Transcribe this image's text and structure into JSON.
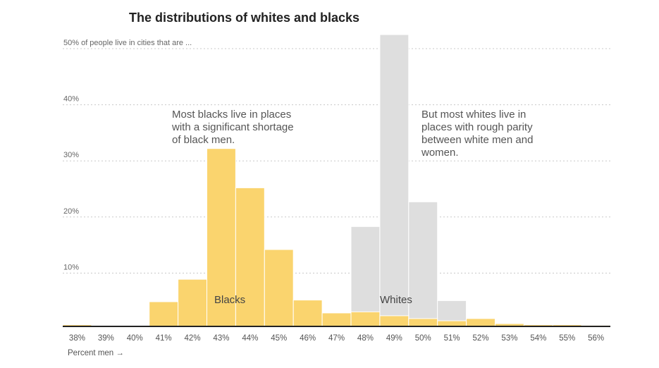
{
  "title": "The distributions of whites and blacks",
  "chart_data": {
    "type": "bar",
    "title": "The distributions of whites and blacks",
    "ylabel_top": "50% of people live in cities that are ...",
    "xlabel": "Percent men →",
    "categories": [
      "38%",
      "39%",
      "40%",
      "41%",
      "42%",
      "43%",
      "44%",
      "45%",
      "46%",
      "47%",
      "48%",
      "49%",
      "50%",
      "51%",
      "52%",
      "53%",
      "54%",
      "55%",
      "56%"
    ],
    "y_ticks": [
      {
        "value": 10,
        "label": "10%"
      },
      {
        "value": 20,
        "label": "20%"
      },
      {
        "value": 30,
        "label": "30%"
      },
      {
        "value": 40,
        "label": "40%"
      },
      {
        "value": 50,
        "label": "50%"
      }
    ],
    "ylim": [
      0,
      52
    ],
    "grid": true,
    "series": [
      {
        "name": "Whites",
        "color": "#dedede",
        "values": [
          0,
          0,
          0,
          0,
          0,
          0,
          0,
          0,
          0.3,
          0.3,
          17.8,
          52.0,
          22.2,
          4.6,
          1.3,
          0.5,
          0.3,
          0.3,
          0
        ]
      },
      {
        "name": "Blacks",
        "color": "#fad46e",
        "values": [
          0.3,
          0,
          0,
          4.4,
          8.4,
          31.7,
          24.7,
          13.7,
          4.7,
          2.4,
          2.6,
          1.9,
          1.4,
          1.0,
          1.4,
          0.5,
          0.3,
          0.3,
          0.2
        ]
      }
    ],
    "annotations": [
      {
        "lines": [
          "Most blacks live in places",
          "with a significant shortage",
          "of black men."
        ]
      },
      {
        "lines": [
          "But most whites live in",
          "places with rough parity",
          "between white men and",
          "women."
        ]
      }
    ]
  }
}
